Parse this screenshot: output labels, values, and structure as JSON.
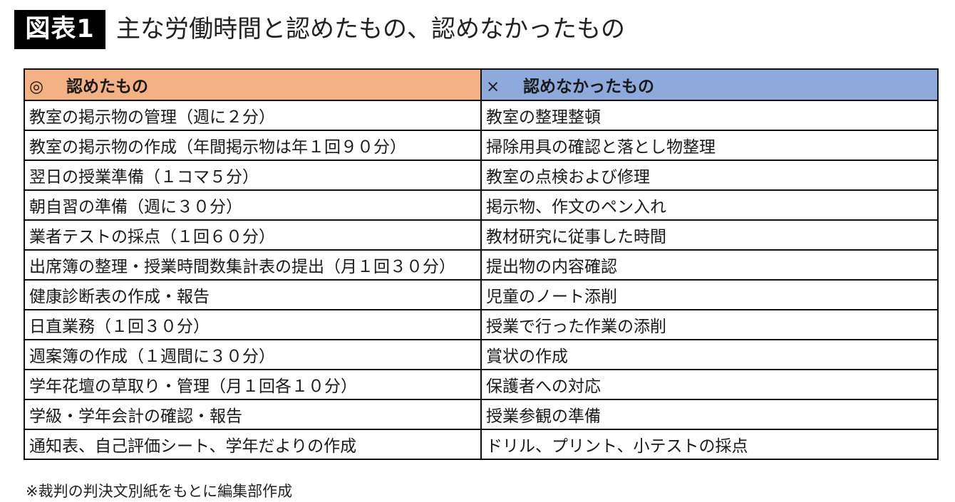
{
  "header": {
    "badge": "図表1",
    "title": "主な労働時間と認めたもの、認めなかったもの"
  },
  "colors": {
    "approved_header": "#F4B183",
    "rejected_header": "#8EA9DB"
  },
  "table": {
    "columns": [
      {
        "mark": "◎",
        "label": "認めたもの"
      },
      {
        "mark": "×",
        "label": "認めなかったもの"
      }
    ],
    "rows": [
      [
        "教室の掲示物の管理（週に２分）",
        "教室の整理整頓"
      ],
      [
        "教室の掲示物の作成（年間掲示物は年１回９０分）",
        "掃除用具の確認と落とし物整理"
      ],
      [
        "翌日の授業準備（１コマ５分）",
        "教室の点検および修理"
      ],
      [
        "朝自習の準備（週に３０分）",
        "掲示物、作文のペン入れ"
      ],
      [
        "業者テストの採点（１回６０分）",
        "教材研究に従事した時間"
      ],
      [
        "出席簿の整理・授業時間数集計表の提出（月１回３０分）",
        "提出物の内容確認"
      ],
      [
        "健康診断表の作成・報告",
        "児童のノート添削"
      ],
      [
        "日直業務（１回３０分）",
        "授業で行った作業の添削"
      ],
      [
        "週案簿の作成（１週間に３０分）",
        "賞状の作成"
      ],
      [
        "学年花壇の草取り・管理（月１回各１０分）",
        "保護者への対応"
      ],
      [
        "学級・学年会計の確認・報告",
        "授業参観の準備"
      ],
      [
        "通知表、自己評価シート、学年だよりの作成",
        "ドリル、プリント、小テストの採点"
      ]
    ]
  },
  "footnote": "※裁判の判決文別紙をもとに編集部作成"
}
